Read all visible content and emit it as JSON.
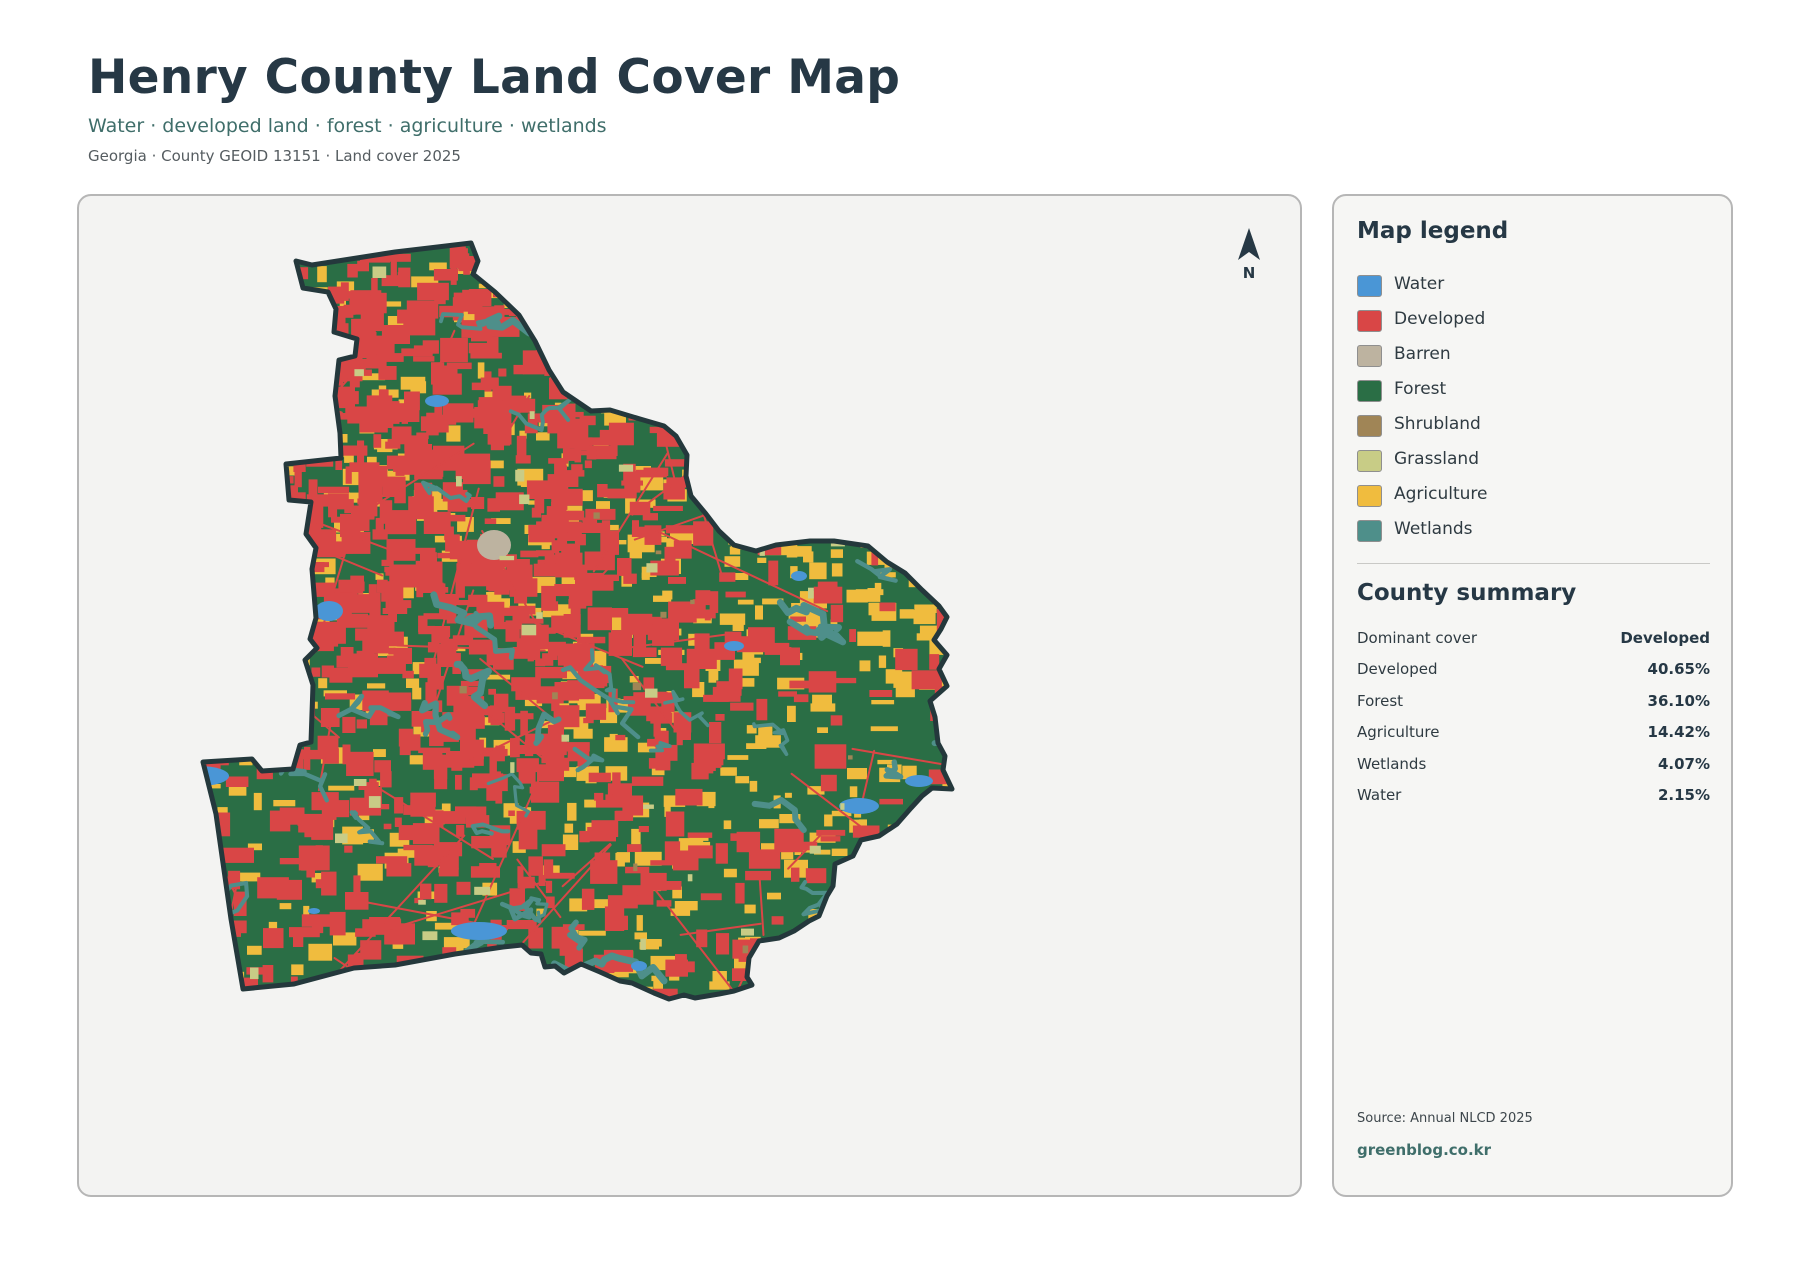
{
  "header": {
    "title": "Henry County Land Cover Map",
    "subtitle": "Water · developed land · forest · agriculture · wetlands",
    "meta": "Georgia · County GEOID 13151 · Land cover 2025"
  },
  "map": {
    "north_label": "N",
    "icons": [
      "north-arrow-icon"
    ],
    "colors": {
      "background": "#f3f3f2",
      "boundary": "#24383c",
      "water": "#4a96d6",
      "developed": "#d94646",
      "barren": "#bdb3a0",
      "forest": "#2a6e45",
      "shrubland": "#a08556",
      "grassland": "#c8cc86",
      "agriculture": "#f0bc3e",
      "wetlands": "#4e8f8a"
    }
  },
  "legend": {
    "title": "Map legend",
    "items": [
      {
        "label": "Water",
        "color": "#4a96d6"
      },
      {
        "label": "Developed",
        "color": "#d94646"
      },
      {
        "label": "Barren",
        "color": "#bdb3a0"
      },
      {
        "label": "Forest",
        "color": "#2a6e45"
      },
      {
        "label": "Shrubland",
        "color": "#a08556"
      },
      {
        "label": "Grassland",
        "color": "#c8cc86"
      },
      {
        "label": "Agriculture",
        "color": "#f0bc3e"
      },
      {
        "label": "Wetlands",
        "color": "#4e8f8a"
      }
    ]
  },
  "summary": {
    "title": "County summary",
    "rows": [
      {
        "key": "Dominant cover",
        "value": "Developed"
      },
      {
        "key": "Developed",
        "value": "40.65%"
      },
      {
        "key": "Forest",
        "value": "36.10%"
      },
      {
        "key": "Agriculture",
        "value": "14.42%"
      },
      {
        "key": "Wetlands",
        "value": "4.07%"
      },
      {
        "key": "Water",
        "value": "2.15%"
      }
    ]
  },
  "footer": {
    "source": "Source: Annual NLCD 2025",
    "site": "greenblog.co.kr"
  }
}
